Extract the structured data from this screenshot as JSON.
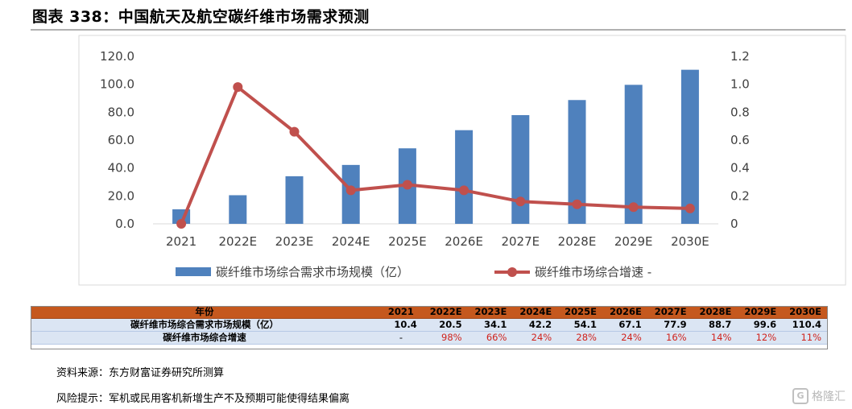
{
  "title": "图表 338：中国航天及航空碳纤维市场需求预测",
  "chart_data": {
    "type": "bar",
    "categories": [
      "2021",
      "2022E",
      "2023E",
      "2024E",
      "2025E",
      "2026E",
      "2027E",
      "2028E",
      "2029E",
      "2030E"
    ],
    "series": [
      {
        "name": "碳纤维市场综合需求市场规模（亿）",
        "kind": "bar",
        "axis": "left",
        "color": "#4f81bd",
        "values": [
          10.4,
          20.5,
          34.1,
          42.2,
          54.1,
          67.1,
          77.9,
          88.7,
          99.6,
          110.4
        ]
      },
      {
        "name": "碳纤维市场综合增速 -",
        "kind": "line",
        "axis": "right",
        "color": "#c0504d",
        "values": [
          0,
          0.98,
          0.66,
          0.24,
          0.28,
          0.24,
          0.16,
          0.14,
          0.12,
          0.11
        ]
      }
    ],
    "y_left": {
      "min": 0,
      "max": 120,
      "ticks": [
        "0.0",
        "20.0",
        "40.0",
        "60.0",
        "80.0",
        "100.0",
        "120.0"
      ]
    },
    "y_right": {
      "min": 0,
      "max": 1.2,
      "ticks": [
        "0",
        "0.2",
        "0.4",
        "0.6",
        "0.8",
        "1.0",
        "1.2"
      ]
    },
    "legend_position": "bottom",
    "grid": false
  },
  "table": {
    "header": [
      "年份",
      "2021",
      "2022E",
      "2023E",
      "2024E",
      "2025E",
      "2026E",
      "2027E",
      "2028E",
      "2029E",
      "2030E"
    ],
    "rows": [
      {
        "label": "碳纤维市场综合需求市场规模（亿）",
        "type": "num",
        "values": [
          "10.4",
          "20.5",
          "34.1",
          "42.2",
          "54.1",
          "67.1",
          "77.9",
          "88.7",
          "99.6",
          "110.4"
        ]
      },
      {
        "label": "碳纤维市场综合增速",
        "type": "pct",
        "values": [
          "-",
          "98%",
          "66%",
          "24%",
          "28%",
          "24%",
          "16%",
          "14%",
          "12%",
          "11%"
        ]
      }
    ]
  },
  "source": "资料来源：东方财富证券研究所测算",
  "risk": "风险提示：军机或民用客机新增生产不及预期可能使得结果偏离",
  "watermark": "格隆汇",
  "watermark_icon": "G"
}
